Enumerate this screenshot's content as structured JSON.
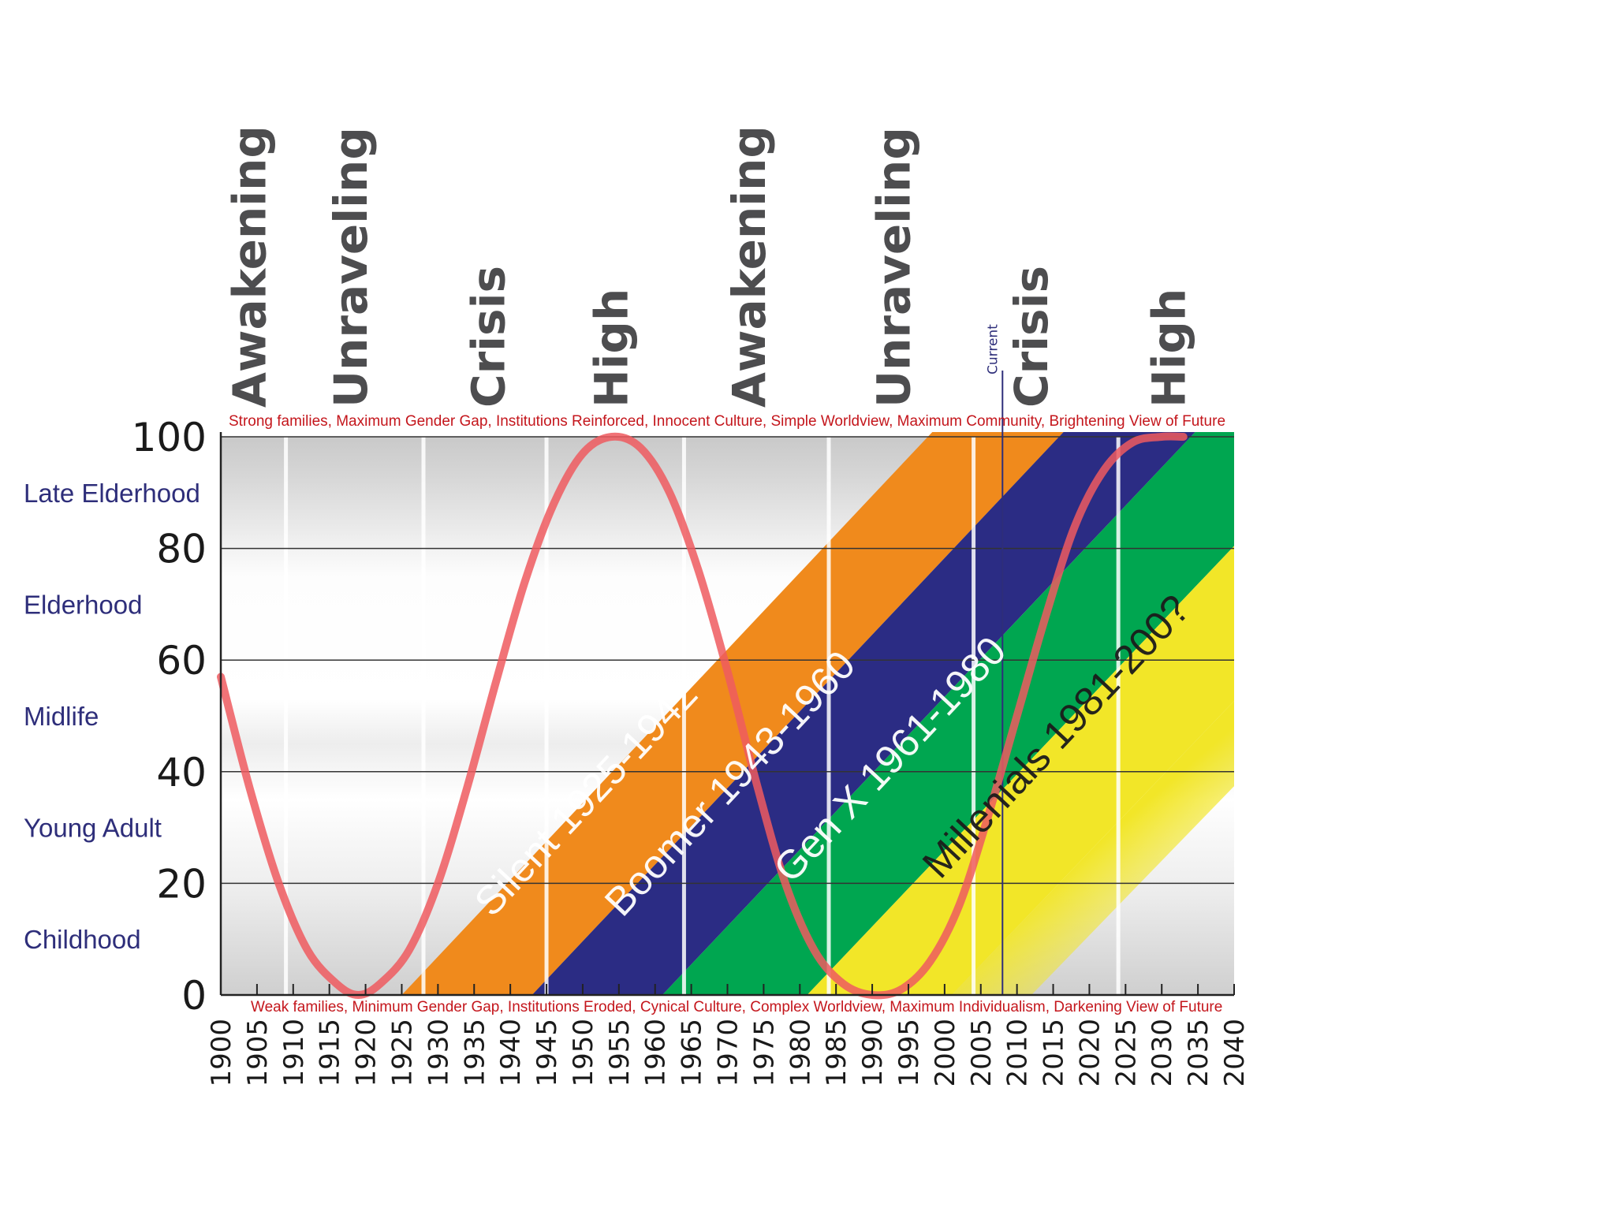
{
  "chart_data": {
    "type": "line",
    "x_range": [
      1900,
      2040
    ],
    "y_range": [
      0,
      100
    ],
    "x_ticks": [
      1900,
      1905,
      1910,
      1915,
      1920,
      1925,
      1930,
      1935,
      1940,
      1945,
      1950,
      1955,
      1960,
      1965,
      1970,
      1975,
      1980,
      1985,
      1990,
      1995,
      2000,
      2005,
      2010,
      2015,
      2020,
      2025,
      2030,
      2035,
      2040
    ],
    "y_ticks": [
      0,
      20,
      40,
      60,
      80,
      100
    ],
    "grid": true,
    "turnings": [
      {
        "label": "Awakening",
        "x": 1904
      },
      {
        "label": "Unraveling",
        "x": 1918
      },
      {
        "label": "Crisis",
        "x": 1937
      },
      {
        "label": "High",
        "x": 1954
      },
      {
        "label": "Awakening",
        "x": 1973
      },
      {
        "label": "Unraveling",
        "x": 1993
      },
      {
        "label": "Crisis",
        "x": 2012
      },
      {
        "label": "High",
        "x": 2031
      }
    ],
    "turning_boundaries": [
      1909,
      1928,
      1945,
      1964,
      1984,
      2004,
      2024
    ],
    "life_stages": [
      {
        "label": "Late Elderhood",
        "y": 90
      },
      {
        "label": "Elderhood",
        "y": 70
      },
      {
        "label": "Midlife",
        "y": 50
      },
      {
        "label": "Young Adult",
        "y": 30
      },
      {
        "label": "Childhood",
        "y": 10
      }
    ],
    "top_note": "Strong families, Maximum Gender Gap, Institutions Reinforced, Innocent Culture, Simple Worldview, Maximum Community, Brightening View of Future",
    "bottom_note": "Weak families, Minimum Gender Gap, Institutions Eroded, Cynical Culture, Complex Worldview, Maximum Individualism, Darkening View of Future",
    "current_marker": {
      "label": "Current",
      "x": 2008
    },
    "generations": [
      {
        "label": "Silent 1925-1942",
        "start": 1925,
        "end": 1942,
        "color": "#f08a1c",
        "text_color": "#ffffff"
      },
      {
        "label": "Boomer 1943-1960",
        "start": 1943,
        "end": 1960,
        "color": "#2b2c84",
        "text_color": "#ffffff"
      },
      {
        "label": "Gen X 1961-1980",
        "start": 1961,
        "end": 1980,
        "color": "#00a650",
        "text_color": "#ffffff"
      },
      {
        "label": "Millenials 1981-200?",
        "start": 1981,
        "end": 2000,
        "color": "#f2e628",
        "text_color": "#1a1a1a"
      }
    ],
    "series": [
      {
        "color": "#ee5a5f",
        "x": [
          1900,
          1904,
          1908,
          1912,
          1916,
          1919,
          1922,
          1926,
          1930,
          1934,
          1938,
          1942,
          1946,
          1950,
          1954,
          1958,
          1962,
          1966,
          1970,
          1974,
          1978,
          1982,
          1986,
          1990,
          1994,
          1998,
          2002,
          2006,
          2010,
          2014,
          2018,
          2022,
          2026,
          2030,
          2033
        ],
        "y": [
          57,
          37,
          20,
          8,
          2,
          0,
          2,
          8,
          20,
          37,
          56,
          74,
          88,
          97,
          100,
          98,
          90,
          76,
          58,
          38,
          20,
          8,
          2,
          0,
          1,
          6,
          16,
          32,
          50,
          68,
          84,
          94,
          99,
          100,
          100
        ]
      }
    ]
  }
}
